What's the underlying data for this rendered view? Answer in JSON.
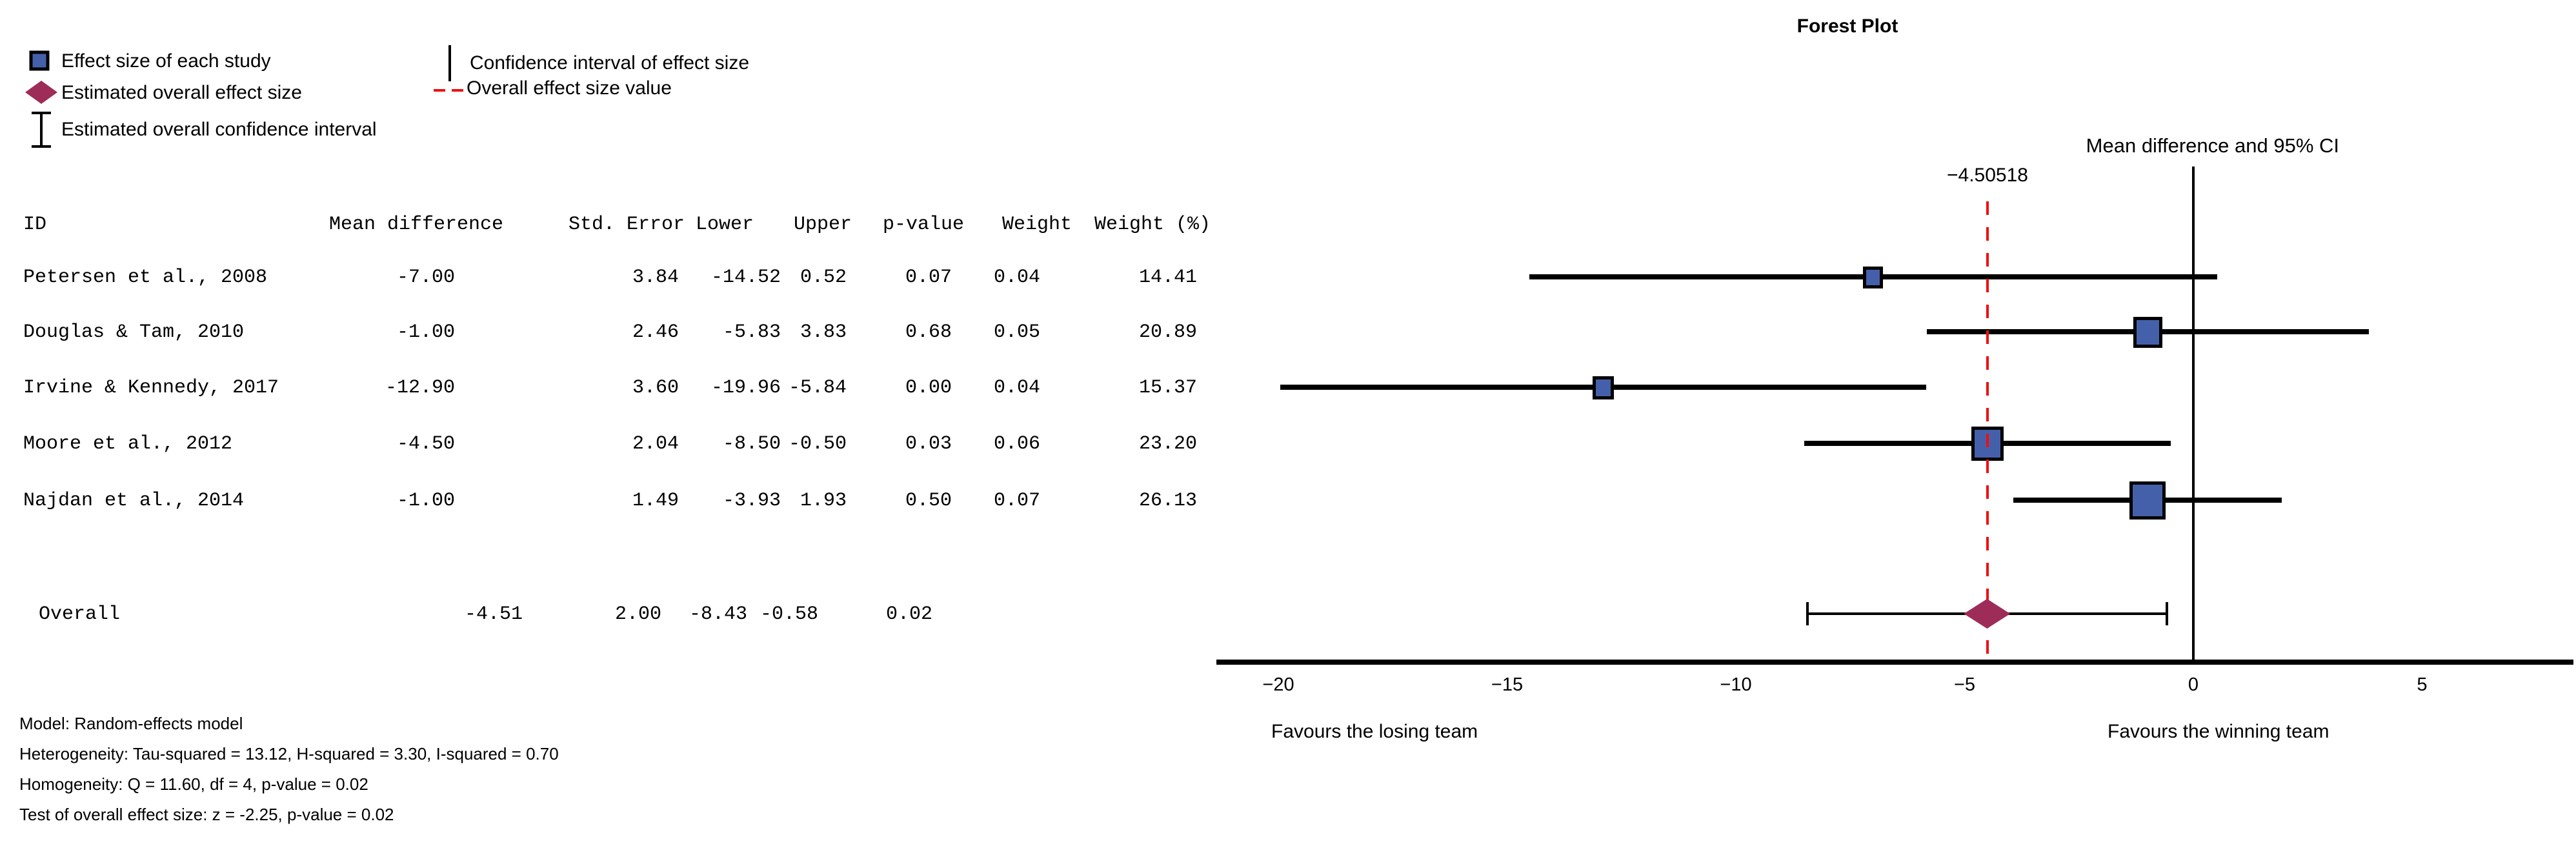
{
  "title": "Forest Plot",
  "legend": {
    "col1": [
      {
        "icon": "effect-square-icon",
        "label": "Effect size of each study"
      },
      {
        "icon": "overall-diamond-icon",
        "label": "Estimated overall effect size"
      },
      {
        "icon": "overall-ci-ibeam-icon",
        "label": "Estimated overall confidence interval"
      }
    ],
    "col2": [
      {
        "icon": "ci-vline-icon",
        "label": "Confidence interval of effect size"
      },
      {
        "icon": "overall-dash-icon",
        "label": "Overall effect size value"
      }
    ]
  },
  "table": {
    "columns": [
      "ID",
      "Mean difference",
      "Std. Error",
      "Lower",
      "Upper",
      "p-value",
      "Weight",
      "Weight (%)"
    ],
    "rows": [
      {
        "id": "Petersen et al., 2008",
        "mean": "-7.00",
        "se": "3.84",
        "lower": "-14.52",
        "upper": "0.52",
        "p": "0.07",
        "weight": "0.04",
        "weight_pct": "14.41"
      },
      {
        "id": "Douglas & Tam, 2010",
        "mean": "-1.00",
        "se": "2.46",
        "lower": "-5.83",
        "upper": "3.83",
        "p": "0.68",
        "weight": "0.05",
        "weight_pct": "20.89"
      },
      {
        "id": "Irvine & Kennedy, 2017",
        "mean": "-12.90",
        "se": "3.60",
        "lower": "-19.96",
        "upper": "-5.84",
        "p": "0.00",
        "weight": "0.04",
        "weight_pct": "15.37"
      },
      {
        "id": "Moore et al., 2012",
        "mean": "-4.50",
        "se": "2.04",
        "lower": "-8.50",
        "upper": "-0.50",
        "p": "0.03",
        "weight": "0.06",
        "weight_pct": "23.20"
      },
      {
        "id": "Najdan et al., 2014",
        "mean": "-1.00",
        "se": "1.49",
        "lower": "-3.93",
        "upper": "1.93",
        "p": "0.50",
        "weight": "0.07",
        "weight_pct": "26.13"
      }
    ],
    "overall": {
      "id": "Overall",
      "mean": "-4.51",
      "se": "2.00",
      "lower": "-8.43",
      "upper": "-0.58",
      "p": "0.02"
    }
  },
  "footnotes": [
    "Model: Random-effects model",
    "Heterogeneity: Tau-squared = 13.12, H-squared = 3.30, I-squared = 0.70",
    "Homogeneity: Q = 11.60, df = 4, p-value = 0.02",
    "Test of overall effect size: z = -2.25, p-value = 0.02"
  ],
  "chart_data": {
    "type": "forest",
    "title": "Forest Plot",
    "column_header": "Mean difference and 95% CI",
    "overall_line_value": -4.50518,
    "overall_line_label": "−4.50518",
    "zero_line": 0,
    "x_ticks": [
      -20,
      -15,
      -10,
      -5,
      0,
      5
    ],
    "x_axis_range": [
      -21.3,
      8.3
    ],
    "favours_left": "Favours the losing team",
    "favours_right": "Favours the winning team",
    "studies": [
      {
        "name": "Petersen et al., 2008",
        "mean": -7.0,
        "lower": -14.52,
        "upper": 0.52,
        "weight_pct": 14.41
      },
      {
        "name": "Douglas & Tam, 2010",
        "mean": -1.0,
        "lower": -5.83,
        "upper": 3.83,
        "weight_pct": 20.89
      },
      {
        "name": "Irvine & Kennedy, 2017",
        "mean": -12.9,
        "lower": -19.96,
        "upper": -5.84,
        "weight_pct": 15.37
      },
      {
        "name": "Moore et al., 2012",
        "mean": -4.5,
        "lower": -8.5,
        "upper": -0.5,
        "weight_pct": 23.2
      },
      {
        "name": "Najdan et al., 2014",
        "mean": -1.0,
        "lower": -3.93,
        "upper": 1.93,
        "weight_pct": 26.13
      }
    ],
    "overall": {
      "name": "Overall",
      "mean": -4.51,
      "lower": -8.43,
      "upper": -0.58
    }
  },
  "colors": {
    "effect_blue": "#4560AA",
    "overall_maroon": "#9E2C58",
    "dashed_red": "#EE1010",
    "line_black": "#000000"
  }
}
